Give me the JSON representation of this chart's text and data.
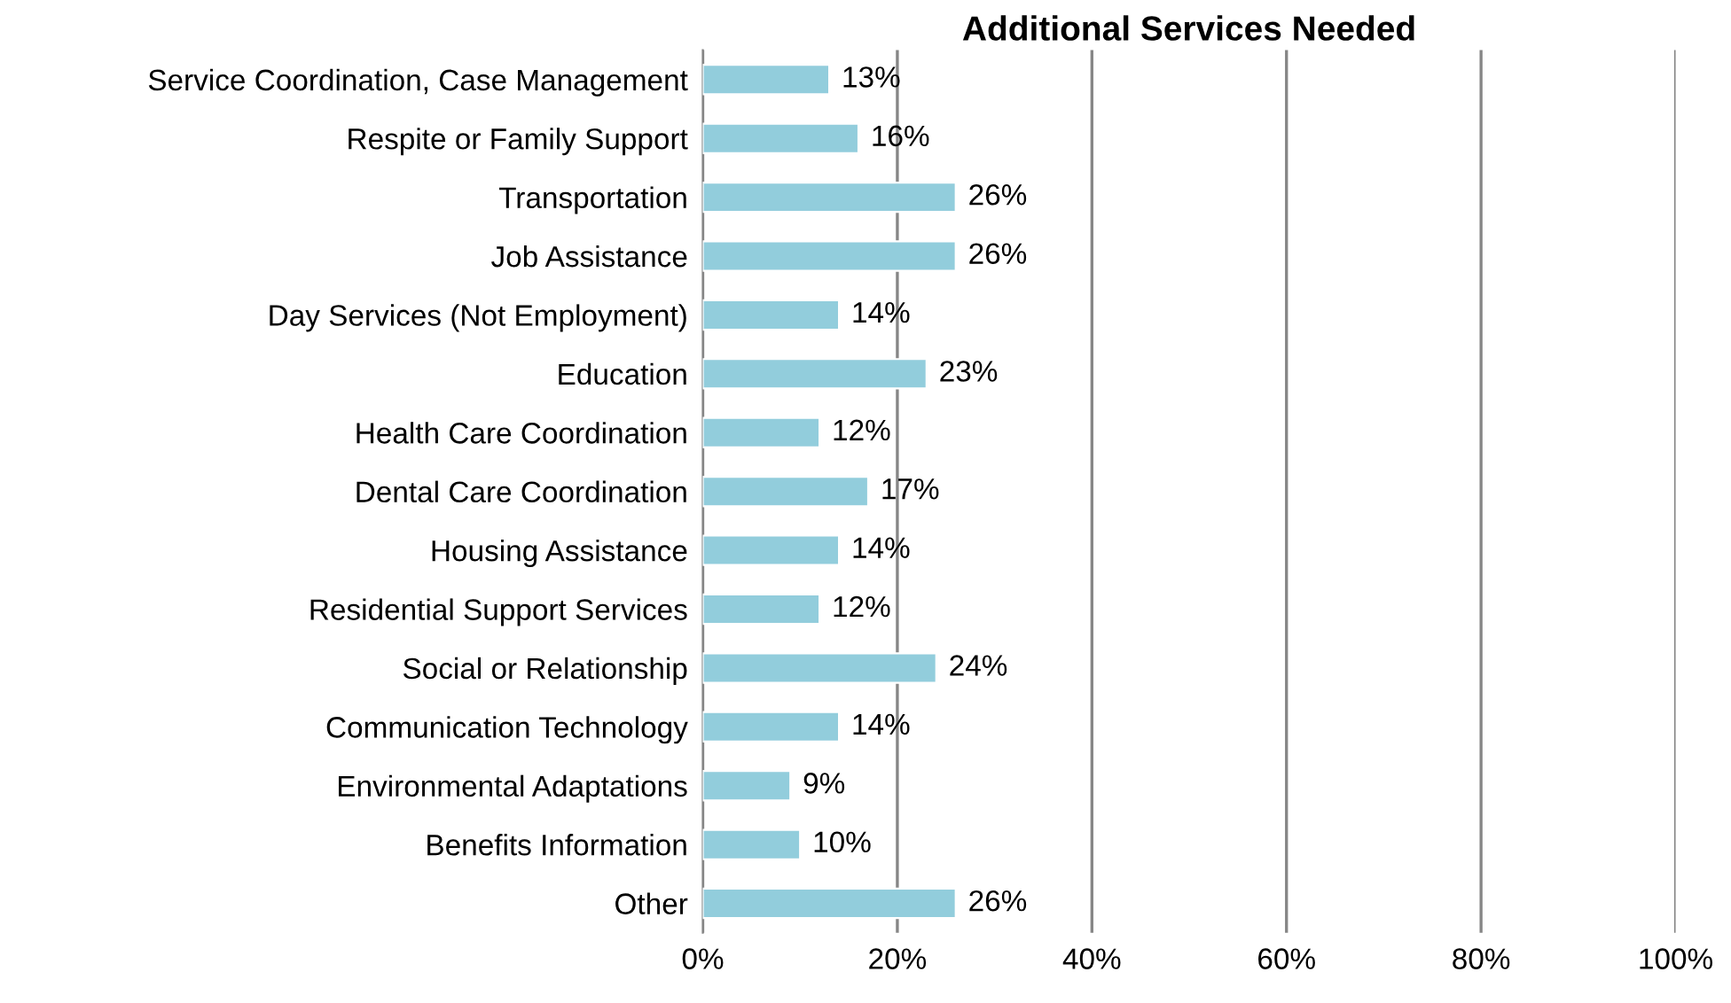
{
  "chart_data": {
    "type": "bar",
    "orientation": "horizontal",
    "title": "Additional Services Needed",
    "categories": [
      "Service Coordination, Case Management",
      "Respite or Family Support",
      "Transportation",
      "Job Assistance",
      "Day Services (Not Employment)",
      "Education",
      "Health Care Coordination",
      "Dental Care Coordination",
      "Housing Assistance",
      "Residential Support Services",
      "Social or Relationship",
      "Communication Technology",
      "Environmental Adaptations",
      "Benefits Information",
      "Other"
    ],
    "values": [
      13,
      16,
      26,
      26,
      14,
      23,
      12,
      17,
      14,
      12,
      24,
      14,
      9,
      10,
      26
    ],
    "value_labels": [
      "13%",
      "16%",
      "26%",
      "26%",
      "14%",
      "23%",
      "12%",
      "17%",
      "14%",
      "12%",
      "24%",
      "14%",
      "9%",
      "10%",
      "26%"
    ],
    "color": "#92cddc",
    "xlim": [
      0,
      100
    ],
    "xticks": [
      {
        "value": 0,
        "label": "0%"
      },
      {
        "value": 20,
        "label": "20%"
      },
      {
        "value": 40,
        "label": "40%"
      },
      {
        "value": 60,
        "label": "60%"
      },
      {
        "value": 80,
        "label": "80%"
      },
      {
        "value": 100,
        "label": "100%"
      }
    ],
    "grid": "x",
    "legend": false
  }
}
